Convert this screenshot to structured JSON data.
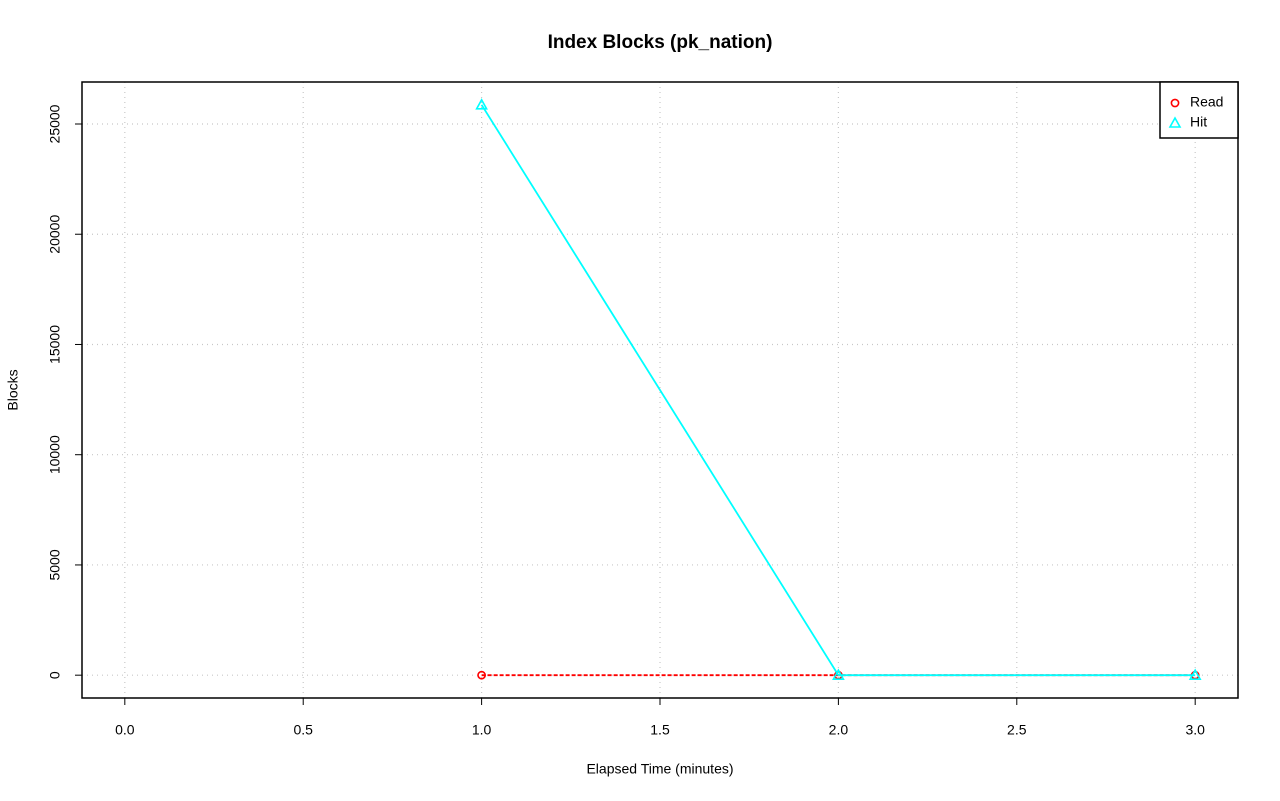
{
  "chart_data": {
    "type": "line",
    "title": "Index Blocks (pk_nation)",
    "x_label": "Elapsed Time (minutes)",
    "y_label": "Blocks",
    "x": [
      1,
      2,
      3
    ],
    "series": [
      {
        "name": "Read",
        "color": "#ff0000",
        "marker": "circle",
        "line_style": "dashed",
        "values": [
          0,
          0,
          0
        ]
      },
      {
        "name": "Hit",
        "color": "#00ffff",
        "marker": "triangle",
        "line_style": "solid",
        "values": [
          25870,
          0,
          0
        ]
      }
    ],
    "xlim": [
      -0.12,
      3.12
    ],
    "xticks": [
      {
        "value": 0,
        "label": "0.0"
      },
      {
        "value": 0.5,
        "label": "0.5"
      },
      {
        "value": 1,
        "label": "1.0"
      },
      {
        "value": 1.5,
        "label": "1.5"
      },
      {
        "value": 2,
        "label": "2.0"
      },
      {
        "value": 2.5,
        "label": "2.5"
      },
      {
        "value": 3,
        "label": "3.0"
      }
    ],
    "ylim": [
      -1035,
      26905
    ],
    "yticks": [
      0,
      5000,
      10000,
      15000,
      20000,
      25000
    ],
    "grid": true,
    "legend": "top-right"
  }
}
